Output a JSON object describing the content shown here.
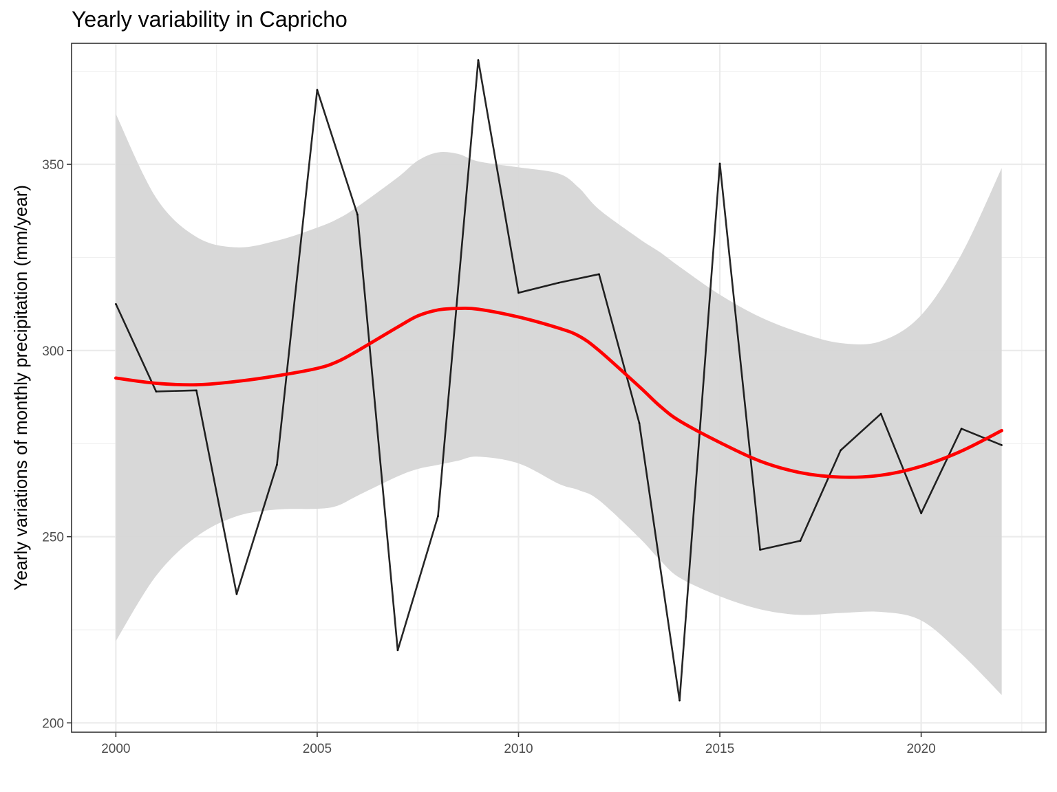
{
  "chart_data": {
    "type": "line",
    "title": "Yearly variability in Capricho",
    "xlabel": "",
    "ylabel": "Yearly variations of monthly precipitation (mm/year)",
    "xlim": [
      1998.9,
      2023.1
    ],
    "ylim": [
      197.5,
      382.5
    ],
    "x_ticks": [
      2000,
      2005,
      2010,
      2015,
      2020
    ],
    "y_ticks": [
      200,
      250,
      300,
      350
    ],
    "grid": true,
    "series": [
      {
        "kind": "observed",
        "color": "#000000",
        "x": [
          2000,
          2001,
          2002,
          2003,
          2004,
          2005,
          2006,
          2007,
          2008,
          2009,
          2010,
          2011,
          2012,
          2013,
          2014,
          2015,
          2016,
          2017,
          2018,
          2019,
          2020,
          2021,
          2022
        ],
        "values": [
          312.5,
          289,
          289.3,
          234.6,
          269.3,
          370,
          336.5,
          219.5,
          255.5,
          378,
          315.5,
          318.2,
          320.5,
          280.5,
          206,
          350.2,
          246.5,
          248.9,
          273.2,
          283,
          256.3,
          279,
          274.6
        ]
      },
      {
        "kind": "smooth",
        "color": "#ff0000",
        "band_color": "#d6d6d6",
        "x": [
          2000,
          2001,
          2002,
          2003,
          2004,
          2005,
          2005.5,
          2006,
          2007,
          2007.5,
          2008,
          2008.5,
          2009,
          2010,
          2011,
          2011.5,
          2012,
          2013,
          2013.5,
          2014,
          2015,
          2016,
          2017,
          2018,
          2019,
          2020,
          2021,
          2022
        ],
        "values": [
          292.6,
          291.2,
          290.8,
          291.7,
          293.2,
          295.2,
          297,
          299.9,
          306.3,
          309.3,
          310.9,
          311.3,
          311.1,
          309,
          306,
          303.9,
          300,
          290.3,
          285.2,
          281.1,
          275.3,
          270.3,
          267.2,
          266.0,
          266.5,
          268.9,
          273.0,
          278.5
        ],
        "lower": [
          222,
          239.5,
          250,
          255.5,
          257.3,
          257.5,
          258.3,
          261,
          266.2,
          268.2,
          269.3,
          270.4,
          271.5,
          269.7,
          264.2,
          262.5,
          259.8,
          249.7,
          243.9,
          239,
          234,
          230.5,
          229,
          229.5,
          229.8,
          227.5,
          218.5,
          207.5
        ],
        "upper": [
          363.5,
          341,
          330.5,
          327.7,
          329.5,
          333,
          335.3,
          338.6,
          346.5,
          351,
          353.2,
          352.8,
          350.8,
          349.2,
          347.5,
          343.7,
          337.9,
          330,
          326.5,
          322.5,
          315,
          309,
          304.8,
          302,
          302.5,
          309.5,
          325.8,
          349
        ]
      }
    ]
  }
}
